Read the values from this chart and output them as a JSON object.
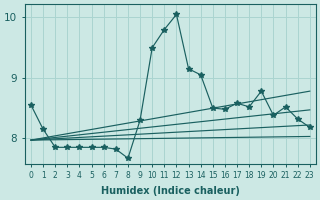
{
  "xlabel": "Humidex (Indice chaleur)",
  "xlim": [
    -0.5,
    23.5
  ],
  "ylim": [
    7.58,
    10.22
  ],
  "yticks": [
    8,
    9,
    10
  ],
  "xticks": [
    0,
    1,
    2,
    3,
    4,
    5,
    6,
    7,
    8,
    9,
    10,
    11,
    12,
    13,
    14,
    15,
    16,
    17,
    18,
    19,
    20,
    21,
    22,
    23
  ],
  "bg_color": "#cce8e4",
  "line_color": "#1a6060",
  "grid_color": "#aad4d0",
  "main_y": [
    8.55,
    8.15,
    7.85,
    7.85,
    7.85,
    7.85,
    7.85,
    7.82,
    7.67,
    8.3,
    9.5,
    9.8,
    10.05,
    9.15,
    9.05,
    8.5,
    8.48,
    8.58,
    8.52,
    8.78,
    8.38,
    8.52,
    8.32,
    8.18
  ],
  "fan_origin_x": 0,
  "fan_origin_y": 7.97,
  "fan_lines": [
    {
      "x1": 23,
      "y1": 8.03
    },
    {
      "x1": 23,
      "y1": 8.22
    },
    {
      "x1": 23,
      "y1": 8.47
    },
    {
      "x1": 23,
      "y1": 8.78
    }
  ]
}
